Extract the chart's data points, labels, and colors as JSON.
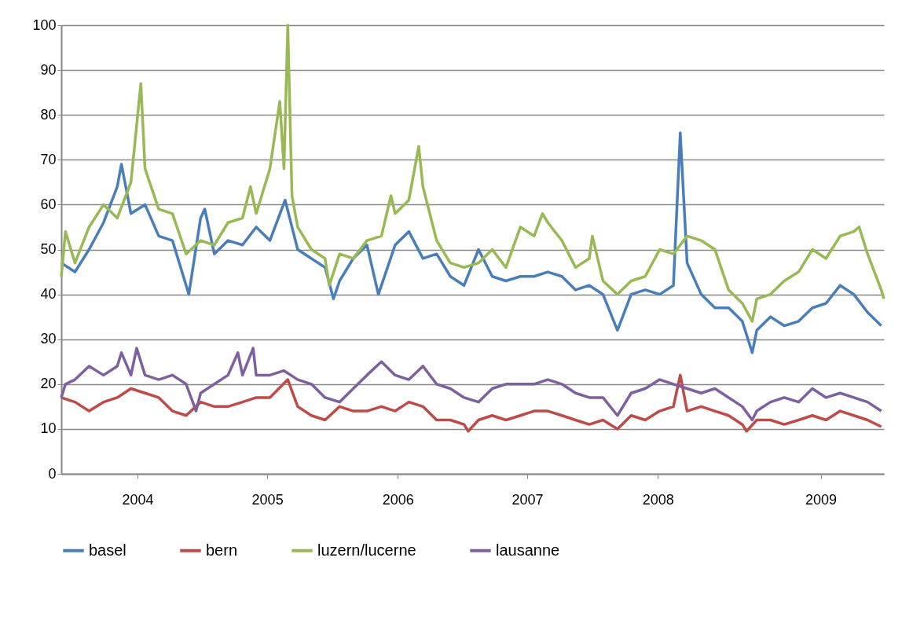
{
  "chart_data": {
    "type": "line",
    "xlim": [
      "2004-01-01",
      "2009-12-01"
    ],
    "xticks": [
      {
        "value": "2004-07-19",
        "label": "2004"
      },
      {
        "value": "2005-06-25",
        "label": "2005"
      },
      {
        "value": "2006-06-03",
        "label": "2006"
      },
      {
        "value": "2007-05-09",
        "label": "2007"
      },
      {
        "value": "2008-04-16",
        "label": "2008"
      },
      {
        "value": "2009-06-18",
        "label": "2009"
      }
    ],
    "ylim": [
      0,
      100
    ],
    "yticks": [
      0,
      10,
      20,
      30,
      40,
      50,
      60,
      70,
      80,
      90,
      100
    ],
    "grid": "y",
    "legend": "bottom",
    "series": [
      {
        "name": "basel",
        "color": "#4a7ebb",
        "x": [
          "2004-01-01",
          "2004-02-06",
          "2004-03-14",
          "2004-04-21",
          "2004-05-27",
          "2004-06-07",
          "2004-07-02",
          "2004-08-08",
          "2004-09-13",
          "2004-10-19",
          "2004-12-01",
          "2005-01-01",
          "2005-01-12",
          "2005-02-06",
          "2005-03-14",
          "2005-04-21",
          "2005-05-27",
          "2005-07-02",
          "2005-08-11",
          "2005-09-13",
          "2005-10-19",
          "2005-11-24",
          "2005-12-16",
          "2006-01-01",
          "2006-02-06",
          "2006-03-14",
          "2006-04-13",
          "2006-05-27",
          "2006-07-02",
          "2006-08-08",
          "2006-09-13",
          "2006-10-19",
          "2006-11-24",
          "2007-01-01",
          "2007-02-06",
          "2007-03-14",
          "2007-04-21",
          "2007-05-27",
          "2007-07-02",
          "2007-08-08",
          "2007-09-13",
          "2007-10-19",
          "2007-11-24",
          "2008-01-01",
          "2008-02-06",
          "2008-03-14",
          "2008-04-21",
          "2008-05-27",
          "2008-06-14",
          "2008-07-02",
          "2008-08-08",
          "2008-09-13",
          "2008-10-19",
          "2008-11-24",
          "2008-12-20",
          "2009-01-01",
          "2009-02-06",
          "2009-03-14",
          "2009-04-21",
          "2009-05-27",
          "2009-07-02",
          "2009-08-08",
          "2009-09-13",
          "2009-10-19",
          "2009-11-24"
        ],
        "values": [
          47,
          45,
          50,
          56,
          64,
          69,
          58,
          60,
          53,
          52,
          40,
          57,
          59,
          49,
          52,
          51,
          55,
          52,
          61,
          50,
          48,
          46,
          39,
          43,
          48,
          51,
          40,
          51,
          54,
          48,
          49,
          44,
          42,
          50,
          44,
          43,
          44,
          44,
          45,
          44,
          41,
          42,
          40,
          32,
          40,
          41,
          40,
          42,
          76,
          47,
          40,
          37,
          37,
          34,
          27,
          32,
          35,
          33,
          34,
          37,
          38,
          42,
          40,
          36,
          33
        ]
      },
      {
        "name": "bern",
        "color": "#be4b48",
        "x": [
          "2004-01-01",
          "2004-02-06",
          "2004-03-14",
          "2004-04-21",
          "2004-05-27",
          "2004-07-02",
          "2004-08-08",
          "2004-09-13",
          "2004-10-19",
          "2004-11-24",
          "2005-01-01",
          "2005-02-06",
          "2005-03-14",
          "2005-04-21",
          "2005-05-27",
          "2005-07-02",
          "2005-08-18",
          "2005-09-13",
          "2005-10-19",
          "2005-11-24",
          "2006-01-01",
          "2006-02-06",
          "2006-03-14",
          "2006-04-21",
          "2006-05-27",
          "2006-07-02",
          "2006-08-08",
          "2006-09-13",
          "2006-10-19",
          "2006-11-24",
          "2006-12-05",
          "2007-01-01",
          "2007-02-06",
          "2007-03-14",
          "2007-04-21",
          "2007-05-27",
          "2007-07-02",
          "2007-08-08",
          "2007-09-13",
          "2007-10-19",
          "2007-11-24",
          "2008-01-01",
          "2008-02-06",
          "2008-03-14",
          "2008-04-21",
          "2008-05-27",
          "2008-06-14",
          "2008-07-02",
          "2008-08-08",
          "2008-09-13",
          "2008-10-19",
          "2008-11-24",
          "2008-12-05",
          "2009-01-01",
          "2009-02-06",
          "2009-03-14",
          "2009-04-21",
          "2009-05-27",
          "2009-07-02",
          "2009-08-08",
          "2009-09-13",
          "2009-10-19",
          "2009-11-24"
        ],
        "values": [
          17,
          16,
          14,
          16,
          17,
          19,
          18,
          17,
          14,
          13,
          16,
          15,
          15,
          16,
          17,
          17,
          21,
          15,
          13,
          12,
          15,
          14,
          14,
          15,
          14,
          16,
          15,
          12,
          12,
          11,
          9.5,
          12,
          13,
          12,
          13,
          14,
          14,
          13,
          12,
          11,
          12,
          10,
          13,
          12,
          14,
          15,
          22,
          14,
          15,
          14,
          13,
          11,
          9.5,
          12,
          12,
          11,
          12,
          13,
          12,
          14,
          13,
          12,
          10.5
        ]
      },
      {
        "name": "luzern/lucerne",
        "color": "#98b954",
        "x": [
          "2004-01-01",
          "2004-01-12",
          "2004-02-06",
          "2004-03-14",
          "2004-04-21",
          "2004-05-27",
          "2004-07-02",
          "2004-07-28",
          "2004-08-08",
          "2004-09-13",
          "2004-10-19",
          "2004-11-24",
          "2005-01-01",
          "2005-02-06",
          "2005-03-14",
          "2005-04-21",
          "2005-05-12",
          "2005-05-27",
          "2005-07-02",
          "2005-07-28",
          "2005-08-08",
          "2005-08-18",
          "2005-08-29",
          "2005-09-13",
          "2005-10-19",
          "2005-11-24",
          "2005-12-05",
          "2006-01-01",
          "2006-02-06",
          "2006-03-14",
          "2006-04-21",
          "2006-05-16",
          "2006-05-27",
          "2006-07-02",
          "2006-07-28",
          "2006-08-08",
          "2006-09-13",
          "2006-10-19",
          "2006-11-24",
          "2007-01-01",
          "2007-02-06",
          "2007-03-14",
          "2007-04-21",
          "2007-05-27",
          "2007-06-18",
          "2007-07-02",
          "2007-08-08",
          "2007-09-13",
          "2007-10-19",
          "2007-10-27",
          "2007-11-24",
          "2008-01-01",
          "2008-02-06",
          "2008-03-14",
          "2008-04-21",
          "2008-05-27",
          "2008-07-02",
          "2008-08-08",
          "2008-09-13",
          "2008-10-19",
          "2008-11-24",
          "2008-12-20",
          "2009-01-01",
          "2009-02-06",
          "2009-03-14",
          "2009-04-21",
          "2009-05-27",
          "2009-07-02",
          "2009-08-08",
          "2009-09-13",
          "2009-09-27",
          "2009-10-19",
          "2009-11-24",
          "2009-12-01"
        ],
        "values": [
          44,
          54,
          47,
          55,
          60,
          57,
          65,
          87,
          68,
          59,
          58,
          49,
          52,
          51,
          56,
          57,
          64,
          58,
          68,
          83,
          68,
          100,
          62,
          55,
          50,
          48,
          42,
          49,
          48,
          52,
          53,
          62,
          58,
          61,
          73,
          64,
          52,
          47,
          46,
          47,
          50,
          46,
          55,
          53,
          58,
          56,
          52,
          46,
          48,
          53,
          43,
          40,
          43,
          44,
          50,
          49,
          53,
          52,
          50,
          41,
          38,
          34,
          39,
          40,
          43,
          45,
          50,
          48,
          53,
          54,
          55,
          49,
          41,
          39
        ]
      },
      {
        "name": "lausanne",
        "color": "#7d60a0",
        "x": [
          "2004-01-01",
          "2004-01-12",
          "2004-02-06",
          "2004-03-14",
          "2004-04-21",
          "2004-05-27",
          "2004-06-07",
          "2004-07-02",
          "2004-07-17",
          "2004-08-08",
          "2004-09-13",
          "2004-10-19",
          "2004-11-24",
          "2004-12-20",
          "2005-01-01",
          "2005-02-06",
          "2005-03-14",
          "2005-04-09",
          "2005-04-21",
          "2005-05-19",
          "2005-05-27",
          "2005-07-02",
          "2005-08-08",
          "2005-09-13",
          "2005-10-19",
          "2005-11-24",
          "2006-01-01",
          "2006-02-06",
          "2006-03-14",
          "2006-04-21",
          "2006-05-27",
          "2006-07-02",
          "2006-08-08",
          "2006-09-13",
          "2006-10-19",
          "2006-11-24",
          "2007-01-01",
          "2007-02-06",
          "2007-03-14",
          "2007-04-21",
          "2007-05-27",
          "2007-07-02",
          "2007-08-08",
          "2007-09-13",
          "2007-10-19",
          "2007-11-24",
          "2008-01-01",
          "2008-02-06",
          "2008-03-14",
          "2008-04-21",
          "2008-05-27",
          "2008-07-02",
          "2008-08-08",
          "2008-09-13",
          "2008-10-19",
          "2008-11-24",
          "2008-12-20",
          "2009-01-01",
          "2009-02-06",
          "2009-03-14",
          "2009-04-21",
          "2009-05-27",
          "2009-07-02",
          "2009-08-08",
          "2009-09-13",
          "2009-10-19",
          "2009-11-24"
        ],
        "values": [
          17,
          20,
          21,
          24,
          22,
          24,
          27,
          22,
          28,
          22,
          21,
          22,
          20,
          14,
          18,
          20,
          22,
          27,
          22,
          28,
          22,
          22,
          23,
          21,
          20,
          17,
          16,
          19,
          22,
          25,
          22,
          21,
          24,
          20,
          19,
          17,
          16,
          19,
          20,
          20,
          20,
          21,
          20,
          18,
          17,
          17,
          13,
          18,
          19,
          21,
          20,
          19,
          18,
          19,
          17,
          15,
          12,
          14,
          16,
          17,
          16,
          19,
          17,
          18,
          17,
          16,
          14
        ]
      }
    ]
  }
}
